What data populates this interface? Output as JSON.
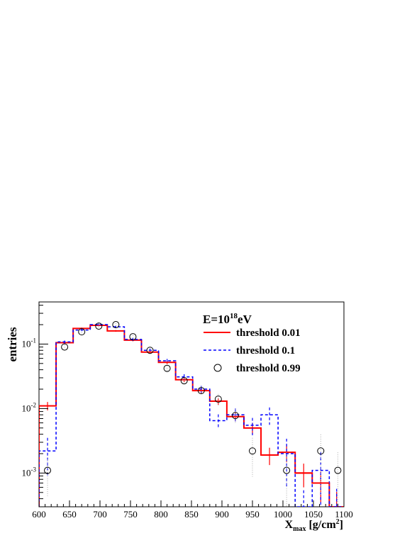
{
  "chart_data": {
    "type": "histogram",
    "ylabel": "entries",
    "xlabel": {
      "main": "X",
      "sub": "max",
      "unit": " [g/cm",
      "sup": "2",
      "close": "]"
    },
    "legend_title": {
      "main": "E=10",
      "sup": "18",
      "tail": "eV"
    },
    "legend_position": "top-right",
    "xlim": [
      600,
      1100
    ],
    "ylim": [
      0.0003,
      0.45
    ],
    "yscale": "log",
    "grid": false,
    "x_ticks": [
      600,
      650,
      700,
      750,
      800,
      850,
      900,
      950,
      1000,
      1050,
      1100
    ],
    "y_ticks": [
      {
        "value": 0.001,
        "base": "10",
        "exp": "-3"
      },
      {
        "value": 0.01,
        "base": "10",
        "exp": "-2"
      },
      {
        "value": 0.1,
        "base": "10",
        "exp": "-1"
      }
    ],
    "bin_edges": [
      600,
      628,
      656,
      684,
      712,
      740,
      768,
      796,
      824,
      852,
      880,
      908,
      936,
      964,
      992,
      1020,
      1048,
      1076,
      1100
    ],
    "series": [
      {
        "name": "threshold 0.01",
        "style": "step-solid",
        "color": "#ff0000",
        "values": [
          0.011,
          0.105,
          0.175,
          0.195,
          0.16,
          0.115,
          0.075,
          0.052,
          0.028,
          0.019,
          0.013,
          0.0075,
          0.005,
          0.0019,
          0.0021,
          0.001,
          0.0007,
          0.0003
        ],
        "errors_rel": [
          0.15,
          0.04,
          0.03,
          0.03,
          0.03,
          0.04,
          0.05,
          0.06,
          0.08,
          0.1,
          0.12,
          0.15,
          0.2,
          0.3,
          0.3,
          0.4,
          0.5,
          0.7
        ]
      },
      {
        "name": "threshold 0.1",
        "style": "step-dashed",
        "color": "#0000ff",
        "values": [
          0.0022,
          0.108,
          0.165,
          0.2,
          0.185,
          0.118,
          0.08,
          0.055,
          0.031,
          0.02,
          0.0065,
          0.008,
          0.0055,
          0.008,
          0.002,
          0.0003,
          0.0011,
          0.0003
        ],
        "errors_rel": [
          0.6,
          0.05,
          0.04,
          0.04,
          0.04,
          0.05,
          0.06,
          0.07,
          0.1,
          0.12,
          0.25,
          0.25,
          0.3,
          0.3,
          0.7,
          0.8,
          0.9,
          0.9
        ]
      },
      {
        "name": "threshold 0.99",
        "style": "markers-circle",
        "color": "#000000",
        "x": [
          614,
          642,
          670,
          698,
          726,
          754,
          782,
          810,
          838,
          866,
          894,
          922,
          950,
          978,
          1006,
          1034,
          1062,
          1090
        ],
        "values": [
          0.0011,
          0.09,
          0.155,
          0.19,
          0.2,
          0.13,
          0.08,
          0.042,
          0.027,
          0.019,
          0.014,
          0.0078,
          0.0022,
          null,
          0.0011,
          null,
          0.0022,
          0.0011
        ],
        "errors_rel": [
          0.6,
          0.08,
          0.06,
          0.05,
          0.05,
          0.06,
          0.08,
          0.1,
          0.12,
          0.15,
          0.2,
          0.25,
          0.6,
          null,
          0.9,
          null,
          0.8,
          0.9
        ]
      }
    ]
  }
}
